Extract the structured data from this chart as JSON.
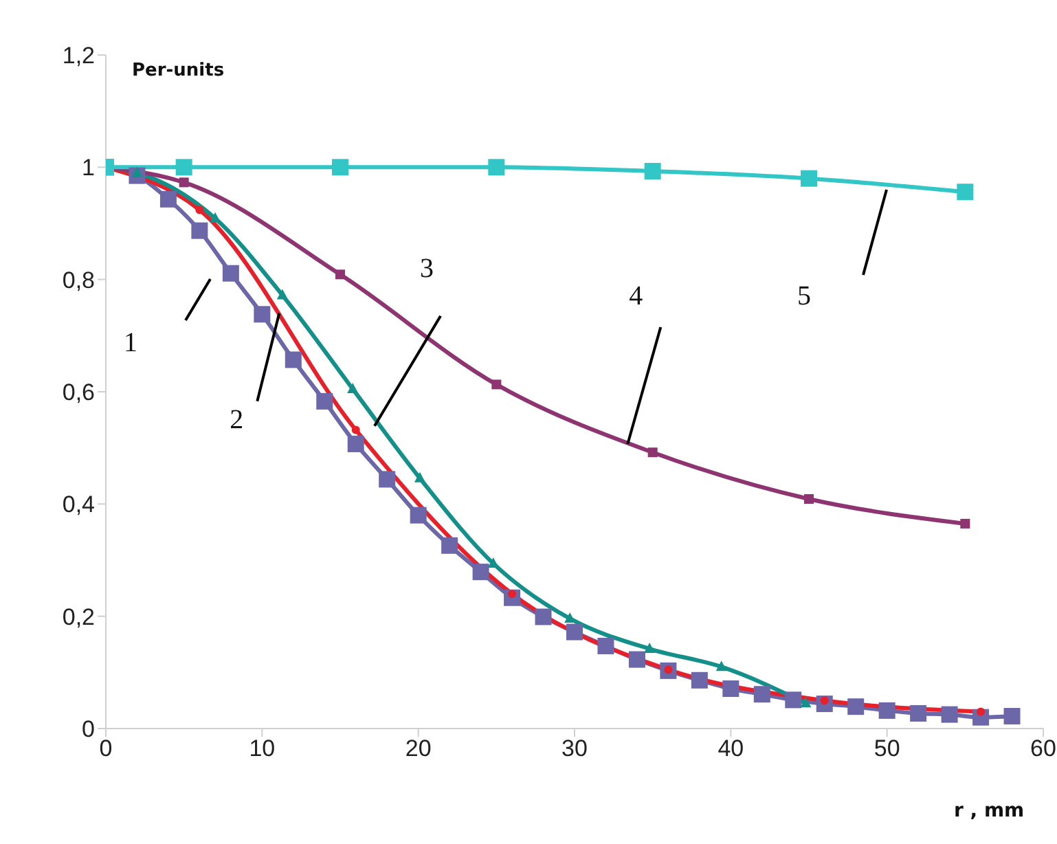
{
  "chart_data": {
    "type": "line",
    "ylabel": "Per-units",
    "xlabel": "r , mm",
    "xlim": [
      0,
      60
    ],
    "xticks": [
      0,
      10,
      20,
      30,
      40,
      50,
      60
    ],
    "ylim": [
      0,
      1.2
    ],
    "yticks": [
      0,
      {
        "value": 0.2,
        "label": "0,2"
      },
      {
        "value": 0.4,
        "label": "0,4"
      },
      {
        "value": 0.6,
        "label": "0,6"
      },
      {
        "value": 0.8,
        "label": "0,8"
      },
      1,
      {
        "value": 1.2,
        "label": "1,2"
      }
    ],
    "grid": false,
    "series": [
      {
        "color": "#6b67a8",
        "marker": "square",
        "x": [
          0,
          2,
          4,
          6,
          8,
          10,
          12,
          14,
          16,
          18,
          20,
          22,
          24,
          26,
          28,
          30,
          32,
          34,
          36,
          38,
          40,
          42,
          44,
          46,
          48,
          50,
          52,
          54,
          56,
          58
        ],
        "values": [
          1,
          0.985,
          0.943,
          0.887,
          0.811,
          0.738,
          0.657,
          0.583,
          0.507,
          0.444,
          0.38,
          0.326,
          0.279,
          0.233,
          0.199,
          0.172,
          0.147,
          0.123,
          0.103,
          0.086,
          0.071,
          0.061,
          0.051,
          0.044,
          0.039,
          0.032,
          0.027,
          0.025,
          0.02,
          0.022
        ]
      },
      {
        "color": "#e8202a",
        "marker": "circle",
        "x": [
          0,
          6,
          16,
          26,
          36,
          46,
          56
        ],
        "values": [
          1,
          0.924,
          0.532,
          0.24,
          0.105,
          0.05,
          0.03
        ]
      },
      {
        "color": "#14908a",
        "marker": "triangle",
        "x": [
          0,
          2,
          7,
          11.3,
          15.8,
          20.1,
          24.8,
          29.7,
          34.8,
          39.4,
          44.8
        ],
        "values": [
          1,
          0.99,
          0.909,
          0.772,
          0.605,
          0.446,
          0.294,
          0.196,
          0.142,
          0.11,
          0.045
        ]
      },
      {
        "color": "#8e3470",
        "marker": "square",
        "x": [
          0,
          5,
          15,
          25,
          35,
          45,
          55
        ],
        "values": [
          1,
          0.973,
          0.809,
          0.613,
          0.492,
          0.409,
          0.365
        ]
      },
      {
        "color": "#33c6c6",
        "marker": "square",
        "x": [
          0,
          5,
          15,
          25,
          35,
          45,
          55
        ],
        "values": [
          1,
          1,
          1,
          1,
          0.993,
          0.98,
          0.956
        ]
      }
    ],
    "annotations": [
      "1",
      {
        "text": "2",
        "x": 11.1,
        "y": 0.74
      },
      {
        "text": "3",
        "x": 17.2,
        "y": 0.539
      },
      {
        "text": "4",
        "x": 33.4,
        "y": 0.507
      },
      "5"
    ]
  }
}
